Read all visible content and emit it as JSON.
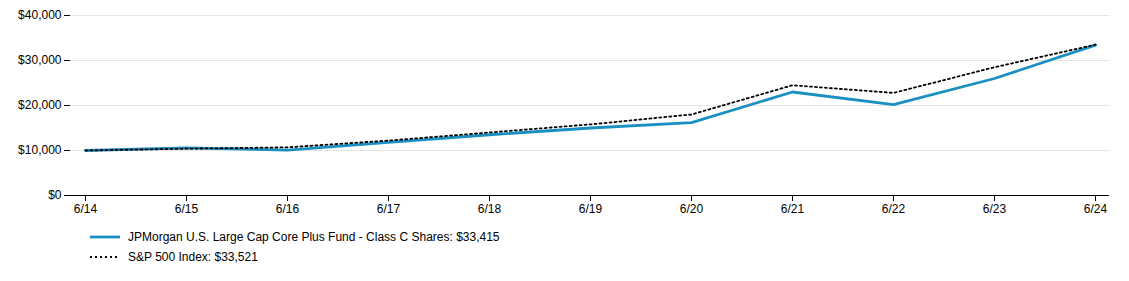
{
  "chart_data": {
    "type": "line",
    "categories": [
      "6/14",
      "6/15",
      "6/16",
      "6/17",
      "6/18",
      "6/19",
      "6/20",
      "6/21",
      "6/22",
      "6/23",
      "6/24"
    ],
    "series": [
      {
        "name": "JPMorgan U.S. Large Cap Core Plus Fund - Class C Shares: $33,415",
        "color": "#1a8fc1",
        "line_style": "solid",
        "values": [
          10000,
          10600,
          10100,
          11800,
          13500,
          15000,
          16200,
          23000,
          20200,
          26000,
          33415
        ]
      },
      {
        "name": "S&P 500 Index: $33,521",
        "color": "#000000",
        "line_style": "dotted",
        "values": [
          10000,
          10400,
          10700,
          12200,
          14000,
          15800,
          18000,
          24500,
          22800,
          28500,
          33521
        ]
      }
    ],
    "ylim": [
      0,
      40000
    ],
    "yticks": [
      {
        "value": 0,
        "label": "$0"
      },
      {
        "value": 10000,
        "label": "$10,000"
      },
      {
        "value": 20000,
        "label": "$20,000"
      },
      {
        "value": 30000,
        "label": "$30,000"
      },
      {
        "value": 40000,
        "label": "$40,000"
      }
    ],
    "grid": true,
    "legend": "bottom"
  }
}
